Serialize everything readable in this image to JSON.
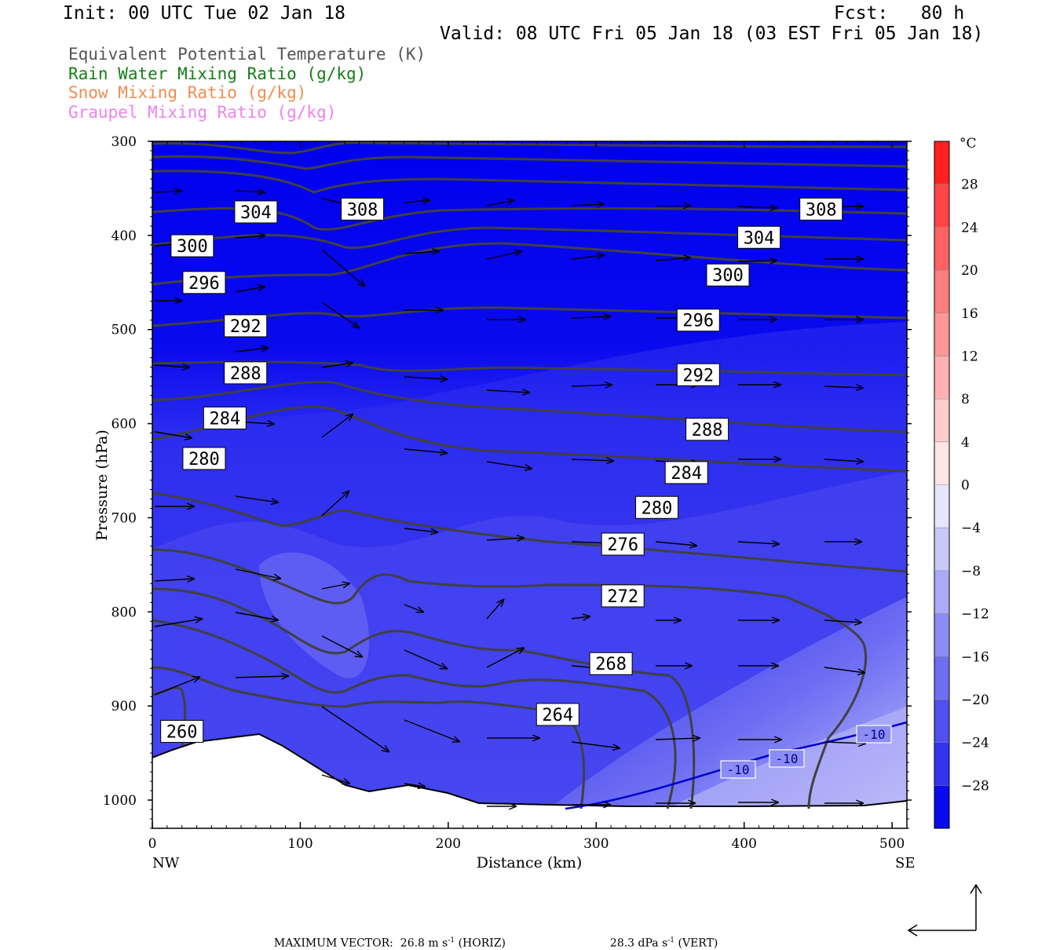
{
  "header": {
    "init": "Init: 00 UTC Tue 02 Jan 18",
    "fcst": "Fcst:   80 h",
    "valid": "Valid: 08 UTC Fri 05 Jan 18 (03 EST Fri 05 Jan 18)"
  },
  "legend": [
    {
      "text": "Equivalent Potential Temperature (K)",
      "color": "#555555"
    },
    {
      "text": "Rain Water Mixing Ratio (g/kg)",
      "color": "#137e13"
    },
    {
      "text": "Snow Mixing Ratio (g/kg)",
      "color": "#f08c50"
    },
    {
      "text": "Graupel Mixing Ratio (g/kg)",
      "color": "#ee82ee"
    }
  ],
  "chart_data": {
    "type": "cross-section",
    "ylabel": "Pressure (hPa)",
    "xlabel": "Distance (km)",
    "x_range": [
      0,
      510
    ],
    "y_range": [
      300,
      1030
    ],
    "y_ticks": [
      300,
      400,
      500,
      600,
      700,
      800,
      900,
      1000
    ],
    "x_ticks": [
      0,
      100,
      200,
      300,
      400,
      500
    ],
    "x_end_labels": {
      "left": "NW",
      "right": "SE"
    },
    "colorbar": {
      "unit": "°C",
      "labels": [
        28,
        24,
        20,
        16,
        12,
        8,
        4,
        0,
        -4,
        -8,
        -12,
        -16,
        -20,
        -24,
        -28
      ]
    },
    "theta_e_labels": [
      {
        "value": "304",
        "x": 70,
        "p": 375
      },
      {
        "value": "308",
        "x": 142,
        "p": 372
      },
      {
        "value": "308",
        "x": 452,
        "p": 372
      },
      {
        "value": "304",
        "x": 410,
        "p": 402
      },
      {
        "value": "300",
        "x": 27,
        "p": 411
      },
      {
        "value": "300",
        "x": 389,
        "p": 442
      },
      {
        "value": "296",
        "x": 35,
        "p": 450
      },
      {
        "value": "296",
        "x": 369,
        "p": 490
      },
      {
        "value": "292",
        "x": 63,
        "p": 496
      },
      {
        "value": "292",
        "x": 369,
        "p": 548
      },
      {
        "value": "288",
        "x": 63,
        "p": 546
      },
      {
        "value": "288",
        "x": 375,
        "p": 606
      },
      {
        "value": "284",
        "x": 49,
        "p": 594
      },
      {
        "value": "284",
        "x": 361,
        "p": 652
      },
      {
        "value": "280",
        "x": 35,
        "p": 637
      },
      {
        "value": "280",
        "x": 341,
        "p": 689
      },
      {
        "value": "276",
        "x": 318,
        "p": 728
      },
      {
        "value": "272",
        "x": 318,
        "p": 783
      },
      {
        "value": "268",
        "x": 310,
        "p": 855
      },
      {
        "value": "264",
        "x": 274,
        "p": 909
      },
      {
        "value": "260",
        "x": 20,
        "p": 927
      }
    ],
    "temp_contour_labels": [
      "-10",
      "-10",
      "-10"
    ],
    "footer": {
      "max_horiz": "26.8",
      "max_vert": "28.3"
    }
  },
  "footer": {
    "prefix": "MAXIMUM VECTOR:",
    "horiz_value": "26.8",
    "horiz_unit": "m s",
    "horiz_exp": "-1",
    "horiz_tag": "(HORIZ)",
    "vert_value": "28.3",
    "vert_unit": "dPa s",
    "vert_exp": "-1",
    "vert_tag": "(VERT)"
  },
  "colors": {
    "fill_dark": "#0000ee",
    "contour": "#404040",
    "temp_contour": "#0000cc"
  }
}
